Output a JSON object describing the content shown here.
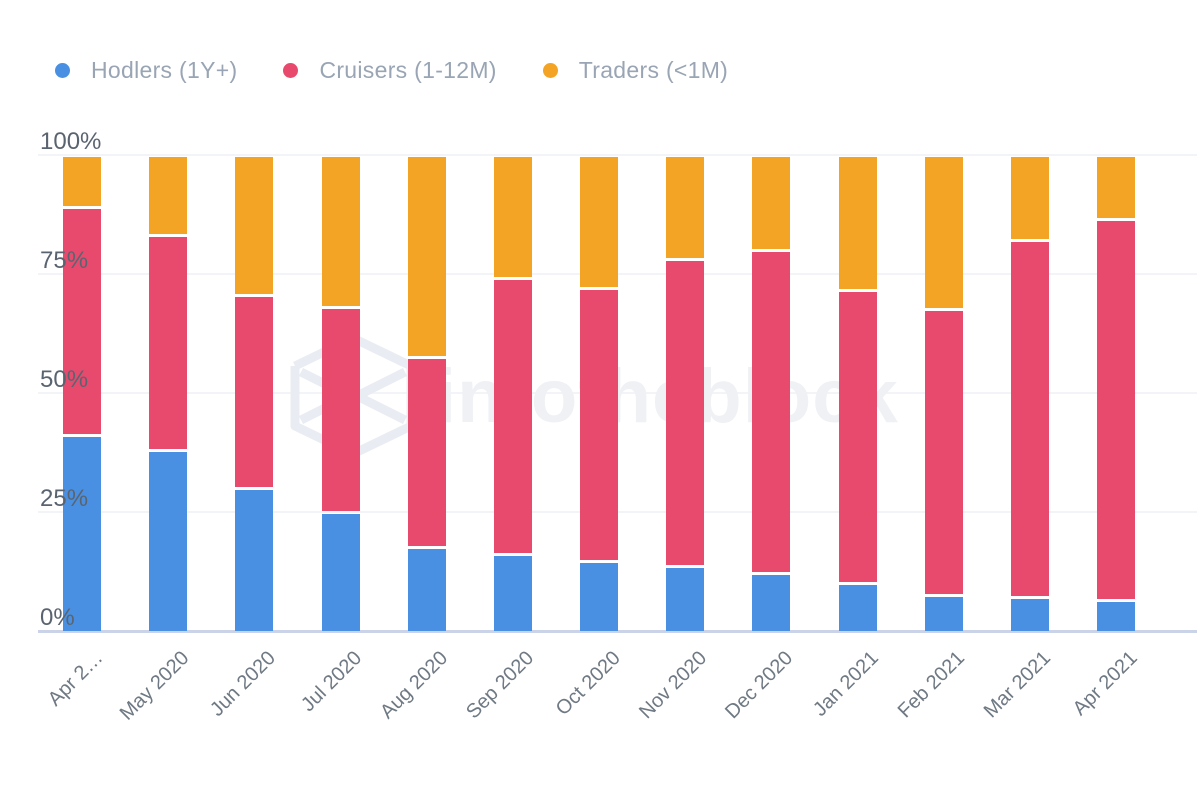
{
  "watermark": {
    "text": "intotheblock"
  },
  "chart_data": {
    "type": "bar",
    "stacked": true,
    "stack_unit": "percent",
    "title": "",
    "xlabel": "",
    "ylabel": "",
    "ylim": [
      0,
      100
    ],
    "grid": true,
    "legend_position": "top-left",
    "yticks": [
      "0%",
      "25%",
      "50%",
      "75%",
      "100%"
    ],
    "categories": [
      "Apr 2…",
      "May 2020",
      "Jun 2020",
      "Jul 2020",
      "Aug 2020",
      "Sep 2020",
      "Oct 2020",
      "Nov 2020",
      "Dec 2020",
      "Jan 2021",
      "Feb 2021",
      "Mar 2021",
      "Apr 2021"
    ],
    "series": [
      {
        "name": "Hodlers (1Y+)",
        "color": "#4A90E2",
        "values": [
          41,
          38,
          30,
          25,
          17.5,
          16,
          14.5,
          13.5,
          12,
          10,
          7.5,
          7,
          6.5
        ]
      },
      {
        "name": "Cruisers (1-12M)",
        "color": "#E84A6E",
        "values": [
          48,
          45,
          40.5,
          43,
          40,
          58,
          57.5,
          64.5,
          68,
          61.5,
          60,
          75,
          80
        ]
      },
      {
        "name": "Traders (<1M)",
        "color": "#F4A425",
        "values": [
          11,
          17,
          29.5,
          32,
          42.5,
          26,
          28,
          22,
          20,
          28.5,
          32.5,
          18,
          13.5
        ]
      }
    ]
  }
}
